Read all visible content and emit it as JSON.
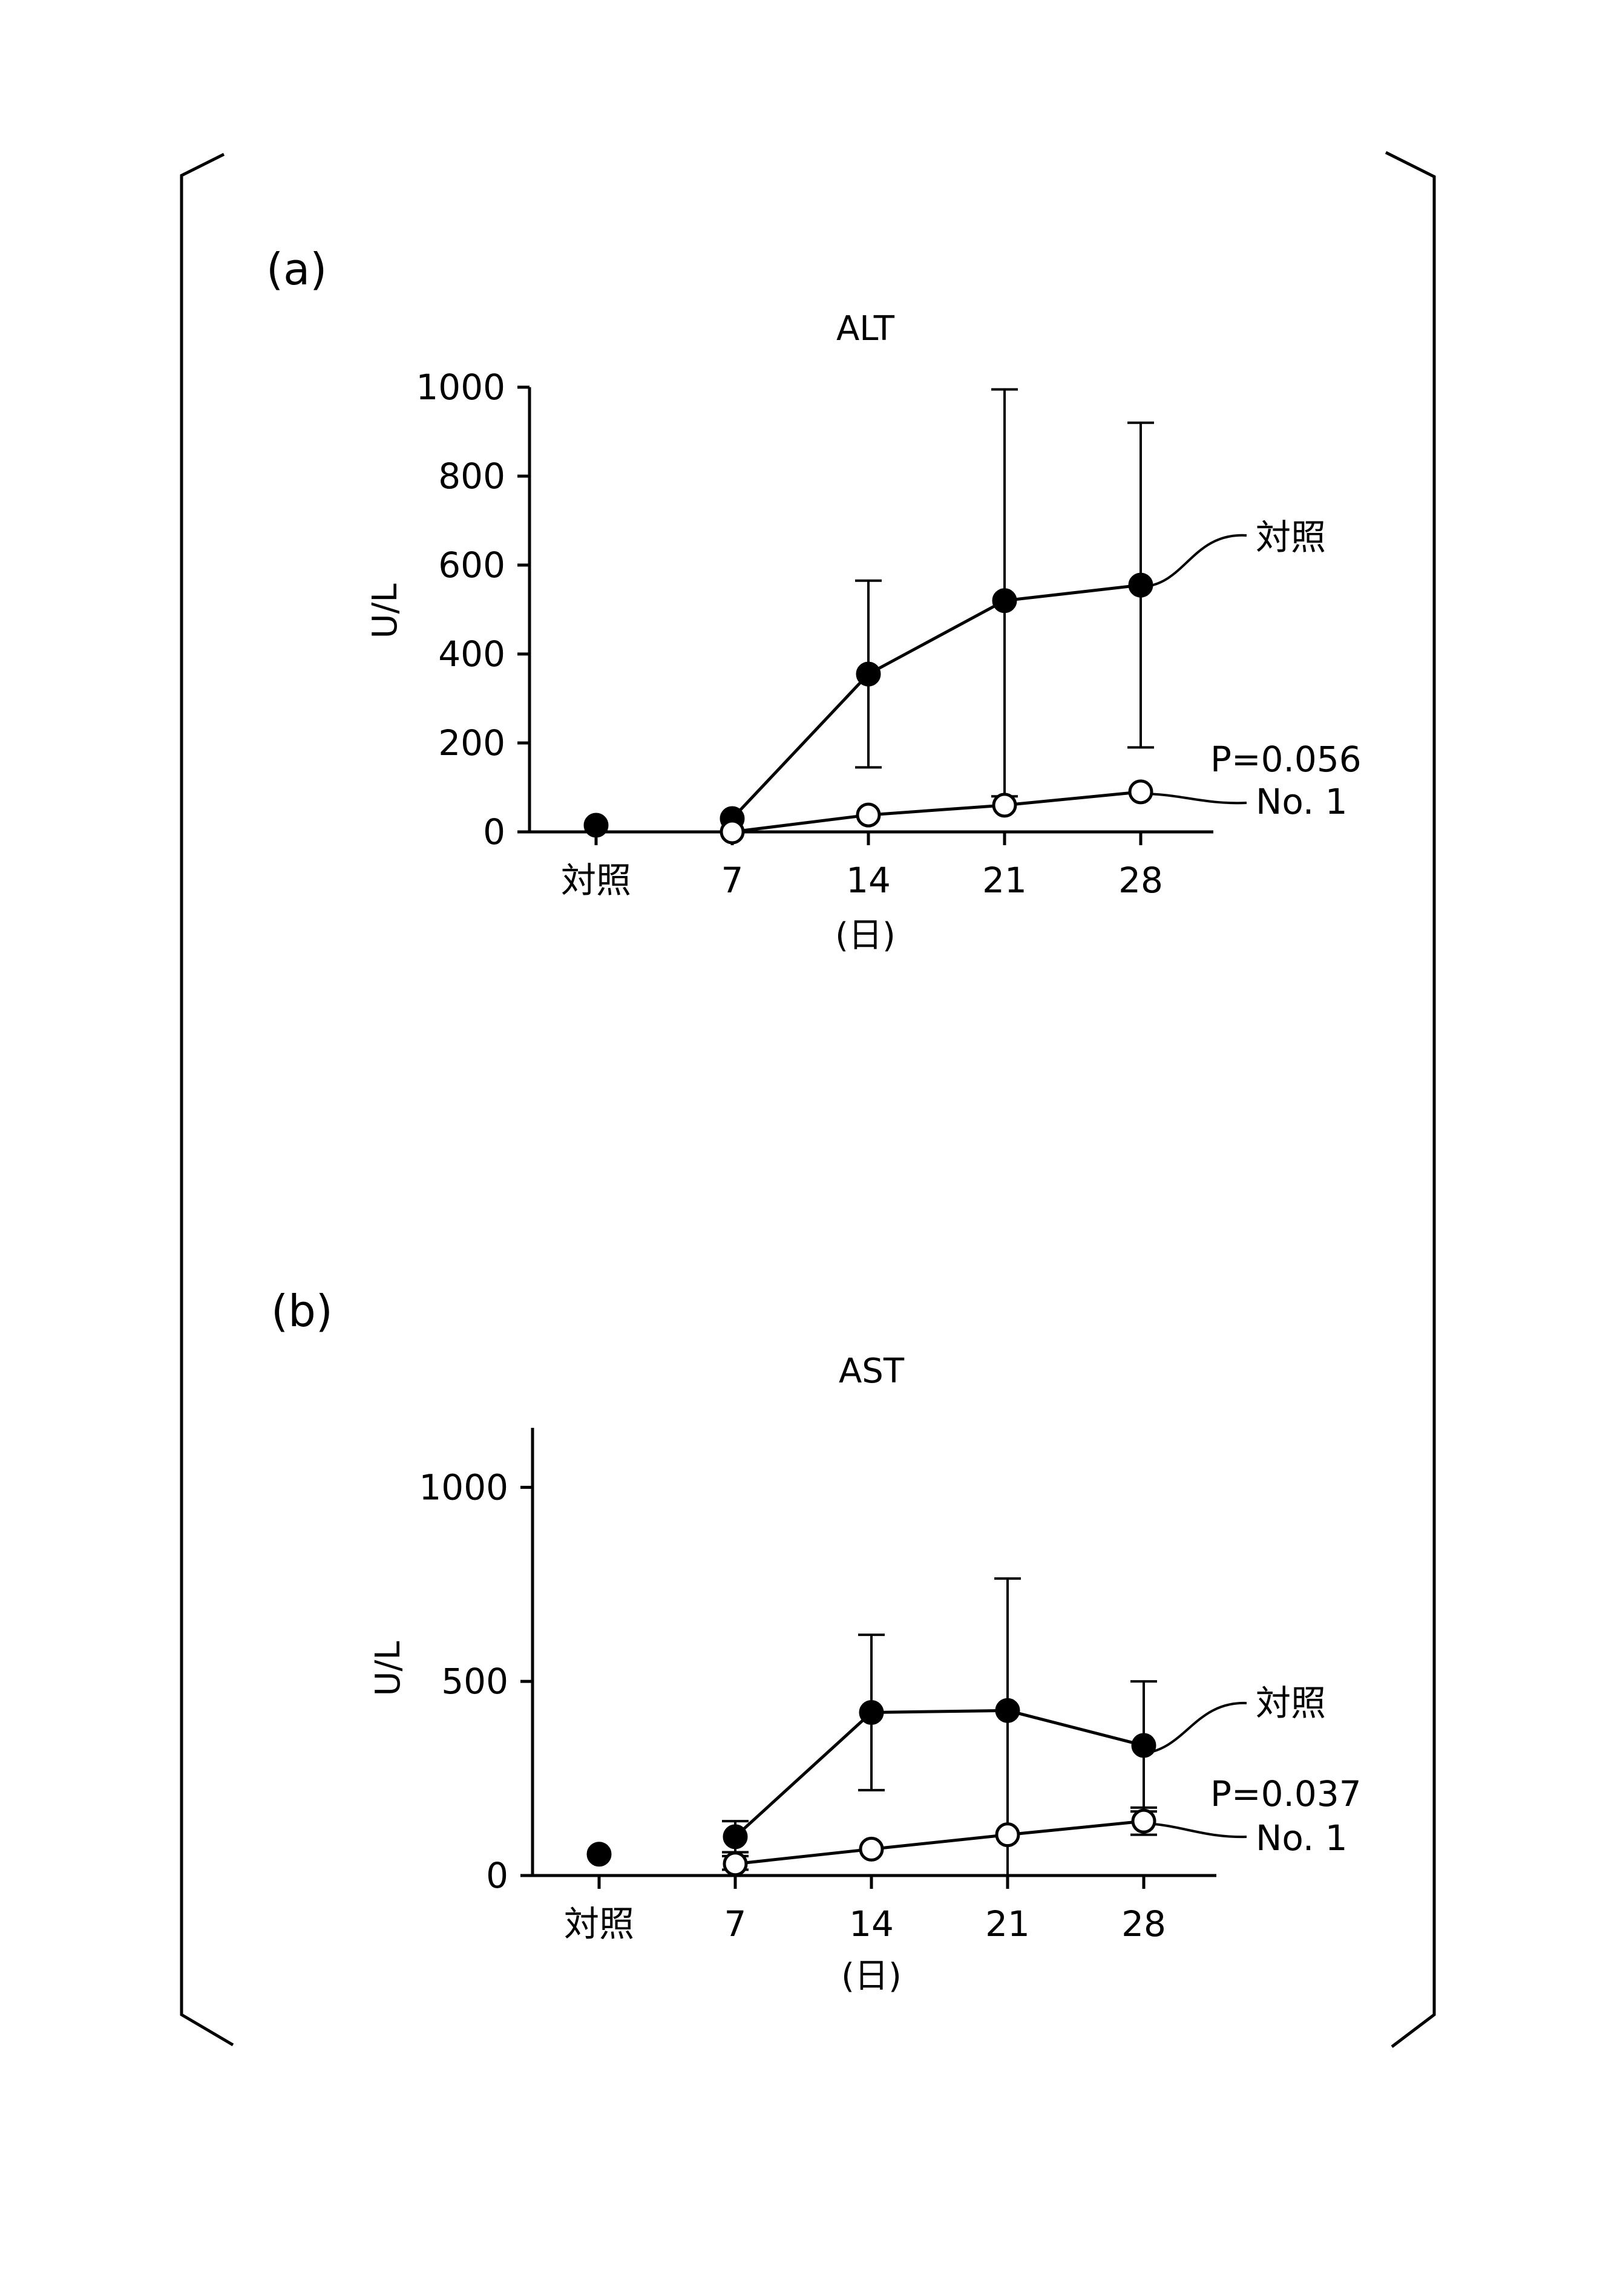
{
  "figure": {
    "brackets": [
      "left",
      "right"
    ]
  },
  "chart_data": [
    {
      "type": "line",
      "panel_label": "(a)",
      "title": "ALT",
      "ylabel": "U/L",
      "xlabel": "(日)",
      "categories": [
        "対照",
        "7",
        "14",
        "21",
        "28"
      ],
      "y_ticks": [
        0,
        200,
        400,
        600,
        800,
        1000
      ],
      "ylim": [
        0,
        1000
      ],
      "grid": false,
      "annotation": "P=0.056",
      "series": [
        {
          "name": "対照",
          "marker": "filled-circle",
          "color": "#000000",
          "values": [
            15,
            30,
            355,
            520,
            555
          ],
          "err_low": [
            null,
            null,
            145,
            80,
            190
          ],
          "err_high": [
            null,
            null,
            565,
            995,
            920
          ],
          "connected_from": 1
        },
        {
          "name": "No. 1",
          "marker": "open-circle",
          "color": "#000000",
          "values": [
            null,
            0,
            38,
            60,
            90
          ],
          "err_low": [
            null,
            null,
            null,
            null,
            null
          ],
          "err_high": [
            null,
            null,
            null,
            null,
            null
          ],
          "connected_from": 1
        }
      ]
    },
    {
      "type": "line",
      "panel_label": "(b)",
      "title": "AST",
      "ylabel": "U/L",
      "xlabel": "(日)",
      "categories": [
        "対照",
        "7",
        "14",
        "21",
        "28"
      ],
      "y_ticks": [
        0,
        500,
        1000
      ],
      "ylim": [
        0,
        1200
      ],
      "grid": false,
      "annotation": "P=0.037",
      "series": [
        {
          "name": "対照",
          "marker": "filled-circle",
          "color": "#000000",
          "values": [
            55,
            100,
            420,
            425,
            335
          ],
          "err_low": [
            null,
            60,
            220,
            0,
            165
          ],
          "err_high": [
            null,
            140,
            620,
            765,
            500
          ],
          "connected_from": 1
        },
        {
          "name": "No. 1",
          "marker": "open-circle",
          "color": "#000000",
          "values": [
            null,
            30,
            68,
            105,
            140
          ],
          "err_low": [
            null,
            15,
            null,
            null,
            105
          ],
          "err_high": [
            null,
            50,
            null,
            null,
            175
          ],
          "connected_from": 1
        }
      ]
    }
  ]
}
